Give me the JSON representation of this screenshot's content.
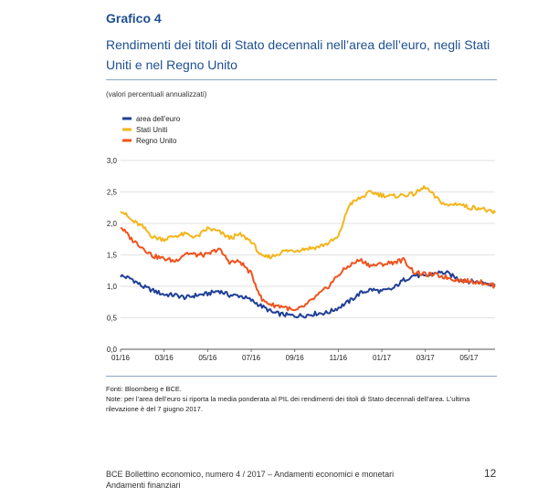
{
  "figure": {
    "label": "Grafico 4",
    "title": "Rendimenti dei titoli di Stato decennali nell’area dell’euro, negli Stati Uniti e nel Regno Unito",
    "units": "(valori percentuali annualizzati)"
  },
  "notes": {
    "sources": "Fonti: Bloomberg e BCE.",
    "note": "Note: per l’area dell’euro si riporta la media ponderata al PIL dei rendimenti dei titoli di Stato decennali dell’area. L’ultima rilevazione è del 7 giugno 2017."
  },
  "footer": {
    "line1": "BCE Bollettino economico, numero 4 / 2017 – Andamenti economici e monetari",
    "line2": "Andamenti finanziari",
    "page": "12"
  },
  "chart_data": {
    "type": "line",
    "x_tick_labels": [
      "01/16",
      "03/16",
      "05/16",
      "07/16",
      "09/16",
      "11/16",
      "01/17",
      "03/17",
      "05/17"
    ],
    "y_tick_labels": [
      "0,0",
      "0,5",
      "1,0",
      "1,5",
      "2,0",
      "2,5",
      "3,0"
    ],
    "ylim": [
      0,
      3
    ],
    "x_range_months": [
      0,
      17.2
    ],
    "grid": true,
    "legend_position": "top-left",
    "series": [
      {
        "name": "area dell'euro",
        "color": "#1f3f97",
        "points": [
          [
            0,
            1.17
          ],
          [
            0.5,
            1.12
          ],
          [
            1,
            1.0
          ],
          [
            1.5,
            0.93
          ],
          [
            2,
            0.87
          ],
          [
            2.5,
            0.86
          ],
          [
            3,
            0.82
          ],
          [
            3.5,
            0.86
          ],
          [
            4,
            0.88
          ],
          [
            4.5,
            0.93
          ],
          [
            5,
            0.86
          ],
          [
            5.5,
            0.85
          ],
          [
            6,
            0.78
          ],
          [
            6.5,
            0.68
          ],
          [
            7,
            0.58
          ],
          [
            7.5,
            0.55
          ],
          [
            8,
            0.53
          ],
          [
            8.5,
            0.54
          ],
          [
            9,
            0.57
          ],
          [
            9.5,
            0.58
          ],
          [
            10,
            0.66
          ],
          [
            10.5,
            0.76
          ],
          [
            11,
            0.89
          ],
          [
            11.5,
            0.95
          ],
          [
            12,
            0.92
          ],
          [
            12.5,
            0.96
          ],
          [
            13,
            1.1
          ],
          [
            13.5,
            1.18
          ],
          [
            14,
            1.15
          ],
          [
            14.5,
            1.22
          ],
          [
            15,
            1.21
          ],
          [
            15.5,
            1.12
          ],
          [
            16,
            1.08
          ],
          [
            16.5,
            1.07
          ],
          [
            17,
            1.04
          ],
          [
            17.2,
            1.02
          ]
        ]
      },
      {
        "name": "Stati Uniti",
        "color": "#f3b51b",
        "points": [
          [
            0,
            2.22
          ],
          [
            0.5,
            2.05
          ],
          [
            1,
            1.95
          ],
          [
            1.5,
            1.78
          ],
          [
            2,
            1.75
          ],
          [
            2.5,
            1.8
          ],
          [
            3,
            1.83
          ],
          [
            3.5,
            1.78
          ],
          [
            4,
            1.92
          ],
          [
            4.5,
            1.87
          ],
          [
            5,
            1.77
          ],
          [
            5.5,
            1.82
          ],
          [
            6,
            1.72
          ],
          [
            6.5,
            1.46
          ],
          [
            7,
            1.48
          ],
          [
            7.5,
            1.56
          ],
          [
            8,
            1.57
          ],
          [
            8.5,
            1.6
          ],
          [
            9,
            1.62
          ],
          [
            9.5,
            1.68
          ],
          [
            10,
            1.78
          ],
          [
            10.5,
            2.3
          ],
          [
            11,
            2.4
          ],
          [
            11.5,
            2.5
          ],
          [
            12,
            2.45
          ],
          [
            12.5,
            2.43
          ],
          [
            13,
            2.45
          ],
          [
            13.5,
            2.47
          ],
          [
            14,
            2.58
          ],
          [
            14.5,
            2.4
          ],
          [
            15,
            2.28
          ],
          [
            15.5,
            2.32
          ],
          [
            16,
            2.25
          ],
          [
            16.5,
            2.25
          ],
          [
            17,
            2.18
          ],
          [
            17.2,
            2.17
          ]
        ]
      },
      {
        "name": "Regno Unito",
        "color": "#f0521d",
        "points": [
          [
            0,
            1.95
          ],
          [
            0.5,
            1.75
          ],
          [
            1,
            1.62
          ],
          [
            1.5,
            1.48
          ],
          [
            2,
            1.44
          ],
          [
            2.5,
            1.4
          ],
          [
            3,
            1.53
          ],
          [
            3.5,
            1.5
          ],
          [
            4,
            1.5
          ],
          [
            4.5,
            1.6
          ],
          [
            5,
            1.39
          ],
          [
            5.5,
            1.39
          ],
          [
            6,
            1.2
          ],
          [
            6.5,
            0.78
          ],
          [
            7,
            0.7
          ],
          [
            7.5,
            0.68
          ],
          [
            8,
            0.6
          ],
          [
            8.5,
            0.7
          ],
          [
            9,
            0.84
          ],
          [
            9.5,
            0.98
          ],
          [
            10,
            1.18
          ],
          [
            10.5,
            1.33
          ],
          [
            11,
            1.42
          ],
          [
            11.5,
            1.33
          ],
          [
            12,
            1.35
          ],
          [
            12.5,
            1.38
          ],
          [
            13,
            1.42
          ],
          [
            13.5,
            1.22
          ],
          [
            14,
            1.19
          ],
          [
            14.5,
            1.18
          ],
          [
            15,
            1.14
          ],
          [
            15.5,
            1.1
          ],
          [
            16,
            1.08
          ],
          [
            16.5,
            1.07
          ],
          [
            17,
            1.03
          ],
          [
            17.2,
            1.0
          ]
        ]
      }
    ]
  }
}
